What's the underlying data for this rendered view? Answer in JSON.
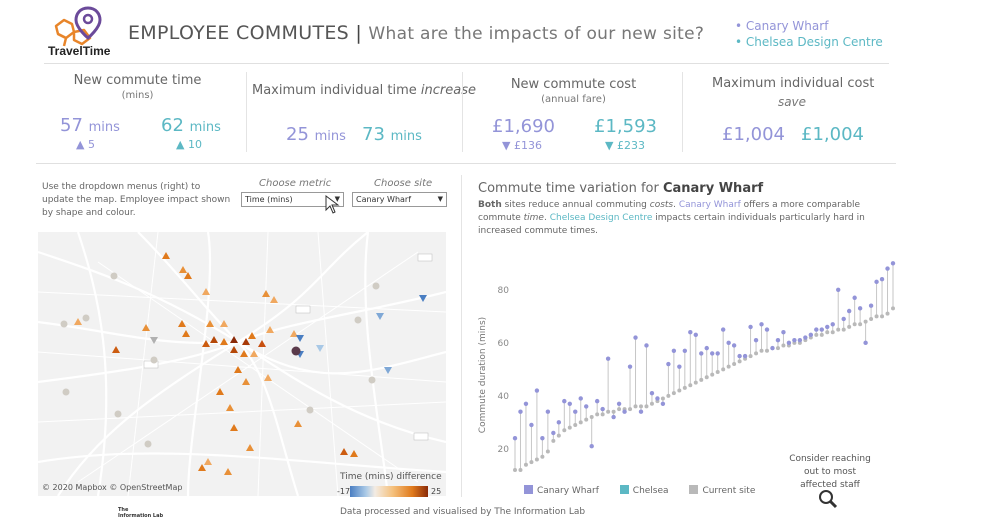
{
  "header": {
    "logo_text": "TravelTime",
    "title_main": "EMPLOYEE COMMUTES",
    "title_sep": "|",
    "title_sub": "What are the impacts of our new site?",
    "legend": [
      "• Canary Wharf",
      "• Chelsea Design Centre"
    ]
  },
  "colors": {
    "canary": "#9394d8",
    "chelsea": "#5cb8c4",
    "current": "#b9b9b9",
    "accent_orange": "#e07a1c"
  },
  "kpis": {
    "commute_time": {
      "label": "New commute time",
      "sub": "(mins)",
      "canary": "57",
      "chelsea": "62",
      "unit": "mins",
      "canary_delta": "▲ 5",
      "chelsea_delta": "▲ 10"
    },
    "max_time": {
      "label_pre": "Maximum individual time",
      "label_em": "increase",
      "canary": "25",
      "chelsea": "73",
      "unit": "mins"
    },
    "commute_cost": {
      "label": "New commute cost",
      "sub": "(annual fare)",
      "canary": "£1,690",
      "chelsea": "£1,593",
      "canary_delta": "▼ £136",
      "chelsea_delta": "▼ £233"
    },
    "max_cost": {
      "label": "Maximum individual cost",
      "sub": "save",
      "canary": "£1,004",
      "chelsea": "£1,004"
    }
  },
  "left": {
    "note": "Use the dropdown menus (right) to update the map. Employee impact shown by shape and colour.",
    "metric_label": "Choose metric",
    "metric_value": "Time (mins)",
    "site_label": "Choose site",
    "site_value": "Canary Wharf",
    "map_credit": "© 2020 Mapbox © OpenStreetMap",
    "color_title": "Time (mins) difference",
    "color_min": "-17",
    "color_max": "25"
  },
  "chart": {
    "title_pre": "Commute time variation for",
    "title_site": "Canary Wharf",
    "desc": {
      "p1_bold": "Both",
      "p1": " sites reduce annual commuting ",
      "p1_em": "costs",
      "p1_end": ". ",
      "site1": "Canary Wharf",
      "p2": " offers a more comparable commute ",
      "p2_em": "time",
      "p2_end": ". ",
      "site2": "Chelsea Design Centre",
      "p3": " impacts certain individuals particularly hard in increased commute times."
    },
    "annotation": "Consider reaching out to most affected staff",
    "legend": {
      "canary": "Canary Wharf",
      "chelsea": "Chelsea",
      "current": "Current site"
    }
  },
  "chart_data": {
    "type": "scatter",
    "ylabel": "Commute duration (mins)",
    "yticks": [
      20,
      40,
      60,
      80
    ],
    "ylim": [
      9,
      92
    ],
    "series": [
      {
        "name": "Current site",
        "values": [
          12,
          12,
          14,
          15,
          16,
          17,
          19,
          23,
          25,
          27,
          28,
          29,
          30,
          31,
          32,
          33,
          33,
          34,
          34,
          35,
          35,
          35,
          36,
          36,
          36,
          37,
          38,
          39,
          40,
          41,
          42,
          43,
          44,
          45,
          46,
          47,
          48,
          49,
          50,
          51,
          52,
          53,
          54,
          55,
          56,
          57,
          57,
          58,
          58,
          59,
          59,
          60,
          60,
          61,
          62,
          63,
          63,
          64,
          64,
          65,
          65,
          66,
          67,
          67,
          68,
          69,
          70,
          70,
          71,
          73
        ]
      },
      {
        "name": "Canary Wharf",
        "values": [
          24,
          34,
          37,
          29,
          42,
          24,
          34,
          26,
          30,
          38,
          37,
          34,
          39,
          36,
          21,
          38,
          35,
          54,
          32,
          37,
          34,
          51,
          62,
          34,
          59,
          41,
          39,
          37,
          52,
          57,
          51,
          57,
          64,
          63,
          56,
          58,
          56,
          56,
          65,
          60,
          59,
          55,
          55,
          66,
          61,
          67,
          65,
          58,
          61,
          64,
          60,
          61,
          61,
          62,
          63,
          65,
          65,
          66,
          67,
          80,
          69,
          72,
          77,
          73,
          60,
          74,
          83,
          84,
          88,
          90
        ]
      }
    ]
  }
}
